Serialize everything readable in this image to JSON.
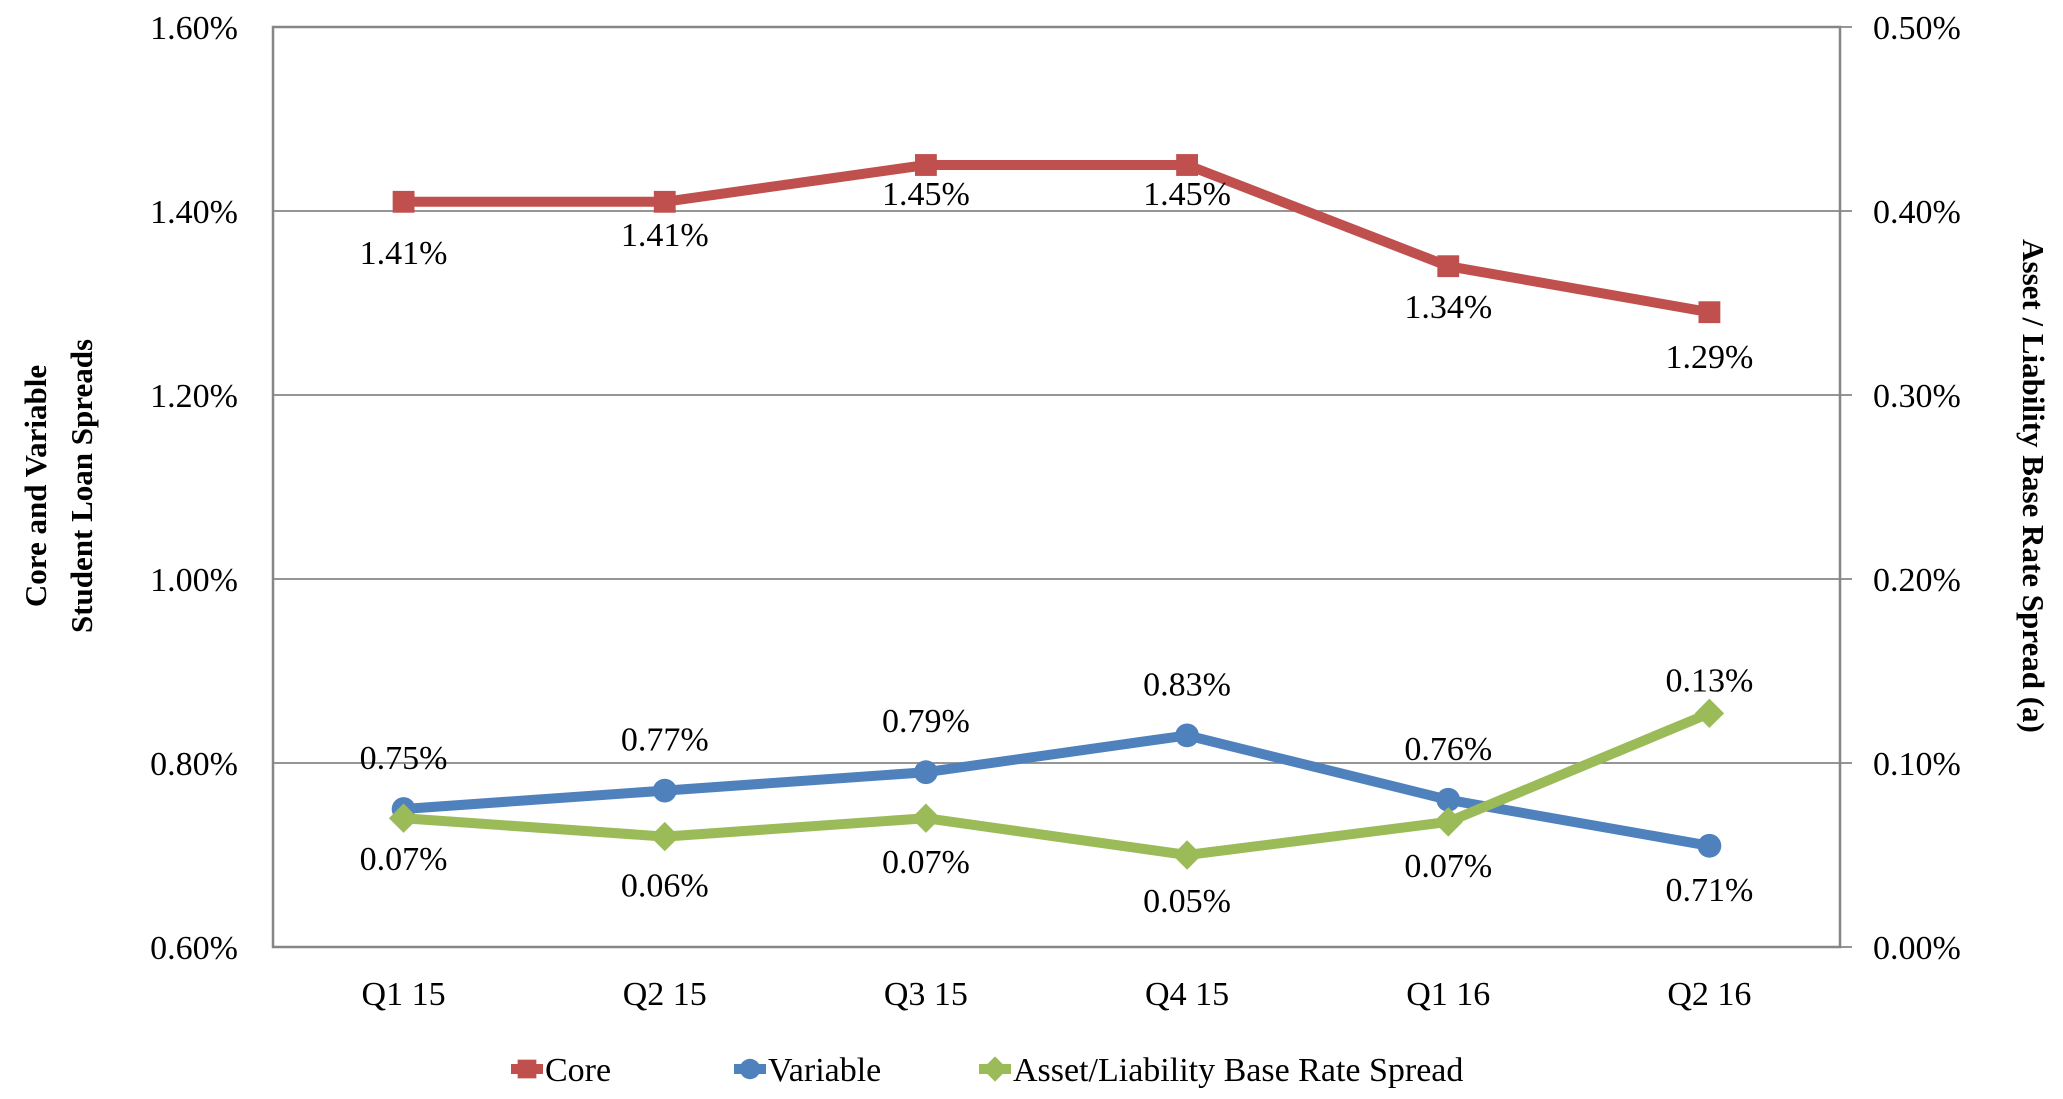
{
  "chart_data": {
    "type": "line",
    "title": "",
    "categories": [
      "Q1 15",
      "Q2 15",
      "Q3 15",
      "Q4 15",
      "Q1 16",
      "Q2 16"
    ],
    "xlabel": "",
    "ylabel": "Core and Variable Student Loan Spreads",
    "ylabel_lines": [
      "Core and Variable",
      "Student Loan Spreads"
    ],
    "y2label": "Asset / Liability Base Rate Spread (a)",
    "ylim": [
      0.6,
      1.6
    ],
    "y2lim": [
      0.0,
      0.5
    ],
    "yticks": [
      0.6,
      0.8,
      1.0,
      1.2,
      1.4,
      1.6
    ],
    "ytick_labels": [
      "0.60%",
      "0.80%",
      "1.00%",
      "1.20%",
      "1.40%",
      "1.60%"
    ],
    "y2ticks": [
      0.0,
      0.1,
      0.2,
      0.3,
      0.4,
      0.5
    ],
    "y2tick_labels": [
      "0.00%",
      "0.10%",
      "0.20%",
      "0.30%",
      "0.40%",
      "0.50%"
    ],
    "grid": true,
    "legend_position": "bottom",
    "series": [
      {
        "name": "Core",
        "axis": "left",
        "marker": "square",
        "color": "#C0504D",
        "values": [
          1.41,
          1.41,
          1.45,
          1.45,
          1.34,
          1.29
        ],
        "labels": [
          "1.41%",
          "1.41%",
          "1.45%",
          "1.45%",
          "1.34%",
          "1.29%"
        ],
        "label_position": [
          "below",
          "below",
          "below",
          "below",
          "below",
          "below"
        ]
      },
      {
        "name": "Variable",
        "axis": "left",
        "marker": "circle",
        "color": "#4F81BD",
        "values": [
          0.75,
          0.77,
          0.79,
          0.83,
          0.76,
          0.71
        ],
        "labels": [
          "0.75%",
          "0.77%",
          "0.79%",
          "0.83%",
          "0.76%",
          "0.71%"
        ],
        "label_position": [
          "above",
          "above",
          "above",
          "above",
          "above",
          "below"
        ]
      },
      {
        "name": "Asset/Liability Base Rate Spread",
        "axis": "right",
        "marker": "diamond",
        "color": "#9BBB59",
        "values": [
          0.07,
          0.06,
          0.07,
          0.05,
          0.068,
          0.127
        ],
        "labels": [
          "0.07%",
          "0.06%",
          "0.07%",
          "0.05%",
          "0.07%",
          "0.13%"
        ],
        "label_position": [
          "below",
          "below",
          "below",
          "below",
          "below",
          "above"
        ]
      }
    ]
  },
  "colors": {
    "gridline": "#868686",
    "axis": "#868686"
  }
}
